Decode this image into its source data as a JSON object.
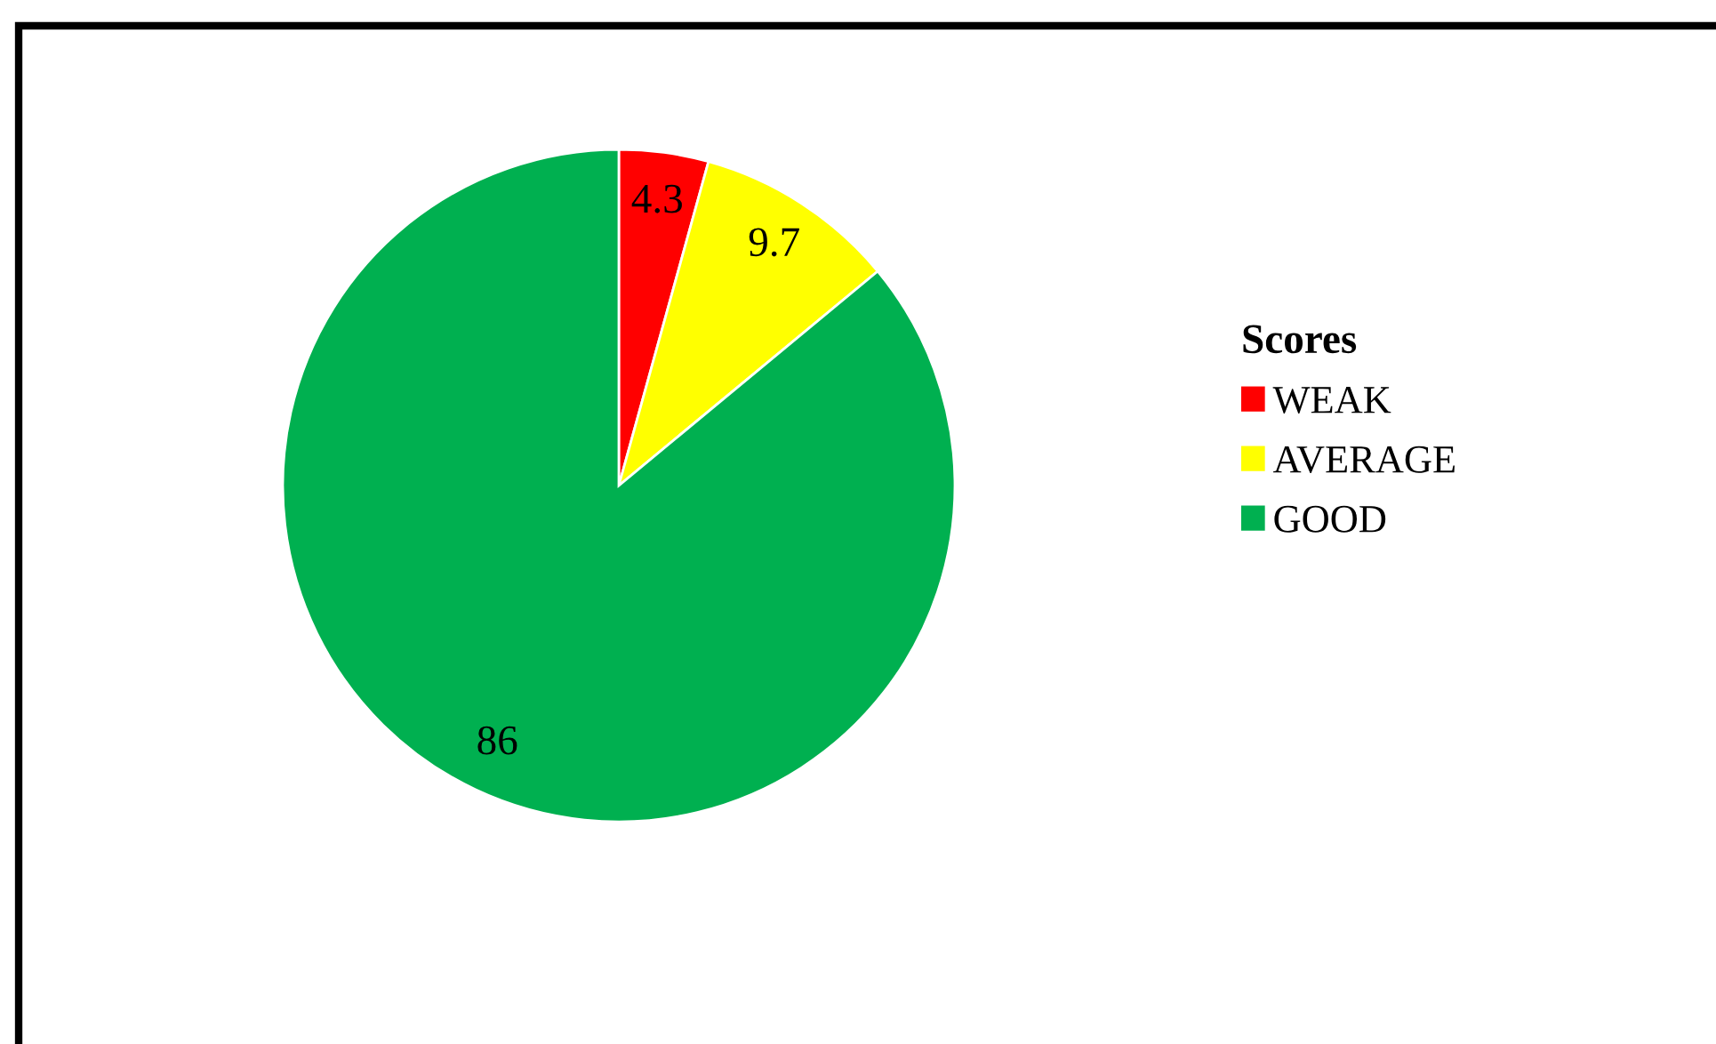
{
  "chart_data": {
    "type": "pie",
    "legend_title": "Scores",
    "categories": [
      "WEAK",
      "AVERAGE",
      "GOOD"
    ],
    "values": [
      4.3,
      9.7,
      86
    ],
    "colors": [
      "#ff0000",
      "#ffff00",
      "#00b050"
    ],
    "data_labels": true,
    "legend": "right"
  }
}
